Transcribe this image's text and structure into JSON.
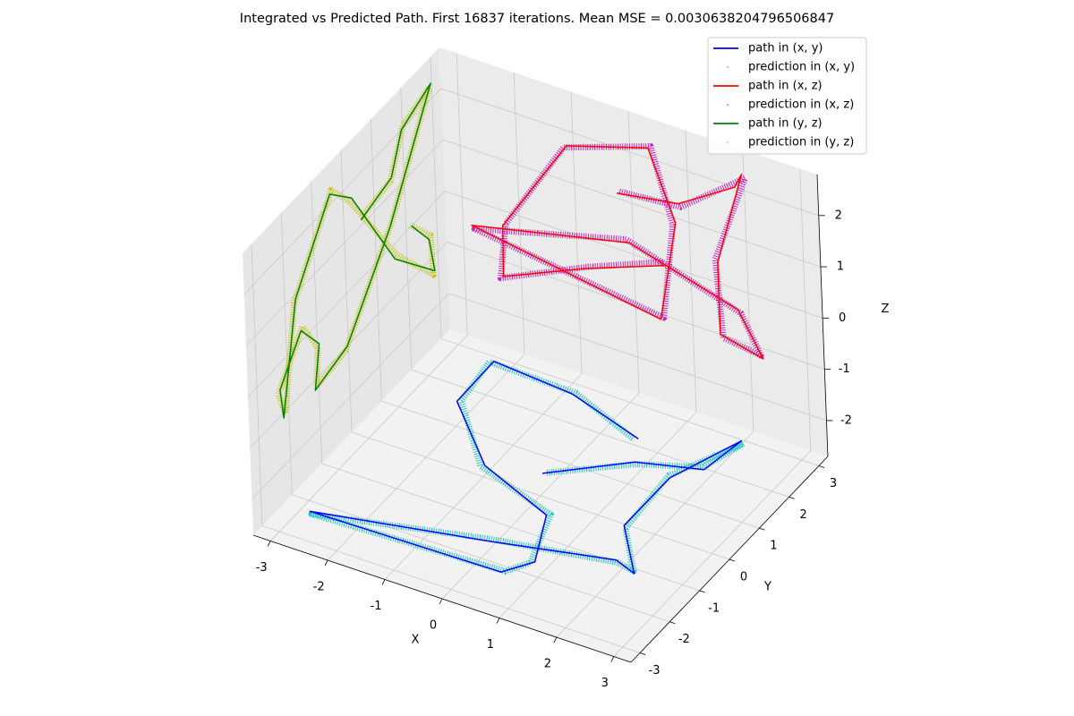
{
  "chart_data": {
    "type": "line3d",
    "title": "Integrated vs Predicted Path. First 16837 iterations. Mean MSE = 0.0030638204796506847",
    "xlabel": "X",
    "ylabel": "Y",
    "zlabel": "Z",
    "xlim": [
      -3.3,
      3.3
    ],
    "ylim": [
      -3.3,
      3.3
    ],
    "zlim": [
      -2.7,
      2.8
    ],
    "xticks": [
      -3,
      -2,
      -1,
      0,
      1,
      2,
      3
    ],
    "yticks": [
      -3,
      -2,
      -1,
      0,
      1,
      2,
      3
    ],
    "zticks": [
      -2,
      -1,
      0,
      1,
      2
    ],
    "grid": true,
    "legend": "upper right",
    "series": [
      {
        "name": "path in (x, y)",
        "color": "#0000ff",
        "plane": "xy",
        "marker": "line",
        "x": [
          -0.26,
          0.82,
          1.83,
          1.96,
          1.48,
          1.48,
          2.22,
          1.81,
          -0.07,
          -2.85,
          0.44,
          0.76,
          0.32,
          -1.12,
          -2.3,
          -2.32,
          -0.87,
          0.57
        ],
        "y": [
          0.56,
          1.59,
          1.97,
          2.97,
          1.49,
          -0.04,
          -1.12,
          -0.94,
          -1.51,
          -2.26,
          -2.17,
          -1.65,
          -0.42,
          0.28,
          1.61,
          2.88,
          2.73,
          2.18
        ]
      },
      {
        "name": "prediction in (x, y)",
        "color": "#00bfbf",
        "plane": "xy",
        "marker": "dots",
        "x": [
          -0.21,
          0.86,
          1.79,
          2.02,
          1.44,
          1.53,
          2.18,
          1.86,
          -0.12,
          -2.8,
          0.49,
          0.71,
          0.37,
          -1.17,
          -2.25,
          -2.37,
          -0.82,
          0.52
        ],
        "y": [
          0.61,
          1.55,
          2.02,
          2.92,
          1.54,
          -0.09,
          -1.07,
          -0.99,
          -1.46,
          -2.31,
          -2.12,
          -1.7,
          -0.37,
          0.23,
          1.66,
          2.83,
          2.78,
          2.13
        ]
      },
      {
        "name": "path in (x, z)",
        "color": "#ff0000",
        "plane": "xz",
        "marker": "line",
        "x": [
          -0.26,
          0.82,
          1.83,
          1.96,
          1.48,
          1.48,
          2.22,
          1.81,
          -0.07,
          -2.85,
          0.44,
          0.76,
          0.32,
          -1.12,
          -2.3,
          -2.32,
          -0.87,
          0.57
        ],
        "z": [
          1.1,
          1.3,
          2.0,
          2.3,
          0.4,
          -1.0,
          -1.2,
          -0.4,
          0.2,
          -0.5,
          -1.1,
          0.9,
          2.2,
          1.7,
          -0.3,
          -1.3,
          -0.6,
          0.0
        ]
      },
      {
        "name": "prediction in (x, z)",
        "color": "#bf00bf",
        "plane": "xz",
        "marker": "dots",
        "x": [
          -0.21,
          0.86,
          1.79,
          2.02,
          1.44,
          1.53,
          2.18,
          1.86,
          -0.12,
          -2.8,
          0.49,
          0.71,
          0.37,
          -1.17,
          -2.25,
          -2.37,
          -0.82,
          0.52
        ],
        "z": [
          1.15,
          1.25,
          2.05,
          2.25,
          0.45,
          -1.05,
          -1.15,
          -0.45,
          0.25,
          -0.55,
          -1.05,
          0.85,
          2.25,
          1.65,
          -0.25,
          -1.35,
          -0.55,
          0.05
        ]
      },
      {
        "name": "path in (y, z)",
        "color": "#008000",
        "plane": "yz",
        "marker": "line",
        "y": [
          0.56,
          1.59,
          1.97,
          2.97,
          1.49,
          -0.04,
          -1.12,
          -0.94,
          -1.51,
          -2.26,
          -2.17,
          -1.65,
          -0.42,
          0.28,
          1.61,
          2.88,
          2.73,
          2.18
        ],
        "z": [
          1.1,
          1.3,
          2.0,
          2.3,
          0.4,
          -1.0,
          -1.2,
          -0.4,
          0.2,
          -0.5,
          -1.1,
          0.9,
          2.2,
          1.7,
          -0.3,
          -1.3,
          -0.6,
          0.0
        ]
      },
      {
        "name": "prediction in (y, z)",
        "color": "#bfbf00",
        "plane": "yz",
        "marker": "dots",
        "y": [
          0.61,
          1.55,
          2.02,
          2.92,
          1.54,
          -0.09,
          -1.07,
          -0.99,
          -1.46,
          -2.31,
          -2.12,
          -1.7,
          -0.37,
          0.23,
          1.66,
          2.83,
          2.78,
          2.13
        ],
        "z": [
          1.15,
          1.25,
          2.05,
          2.25,
          0.45,
          -1.05,
          -1.15,
          -0.45,
          0.25,
          -0.55,
          -1.05,
          0.85,
          2.25,
          1.65,
          -0.25,
          -1.35,
          -0.55,
          0.05
        ]
      }
    ]
  }
}
